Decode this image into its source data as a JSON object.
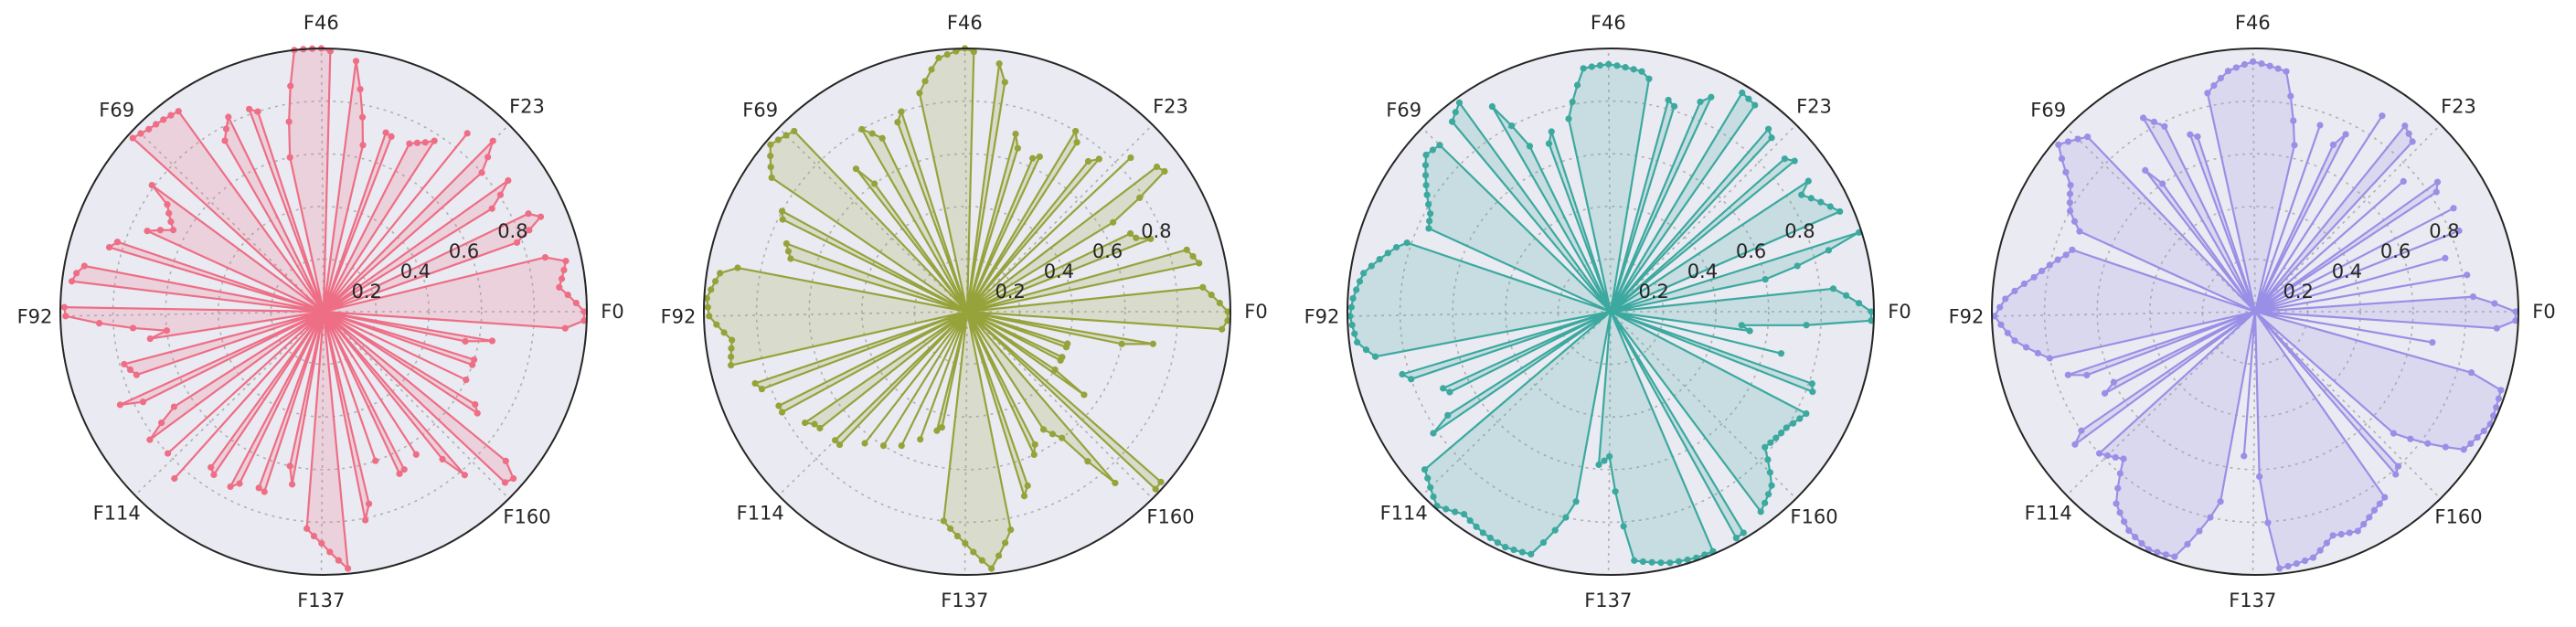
{
  "colors": {
    "background": "#EAEAF2",
    "frame": "#262626",
    "grid": "#B0B0B0"
  },
  "chart_data": [
    {
      "type": "radar",
      "color": "#EE6E85",
      "axis_labels": [
        "F0",
        "F23",
        "F46",
        "F69",
        "F92",
        "F114",
        "F137",
        "F160"
      ],
      "rticks": [
        "0.2",
        "0.4",
        "0.6",
        "0.8"
      ],
      "rlim": [
        0,
        1
      ],
      "grid": true,
      "features": 183,
      "gap_ranges": [
        [
          8,
          9
        ],
        [
          14,
          15
        ],
        [
          19,
          20
        ],
        [
          24,
          25
        ],
        [
          27,
          28
        ],
        [
          33,
          34
        ],
        [
          37,
          38
        ],
        [
          43,
          44
        ],
        [
          53,
          54
        ],
        [
          57,
          58
        ],
        [
          62,
          63
        ],
        [
          71,
          72
        ],
        [
          80,
          81
        ],
        [
          84,
          85
        ],
        [
          89,
          90
        ],
        [
          97,
          98
        ],
        [
          102,
          103
        ],
        [
          106,
          107
        ],
        [
          111,
          112
        ],
        [
          114,
          115
        ],
        [
          117,
          118
        ],
        [
          121,
          122
        ],
        [
          125,
          126
        ],
        [
          129,
          130
        ],
        [
          133,
          134
        ],
        [
          141,
          142
        ],
        [
          145,
          146
        ],
        [
          148,
          149
        ],
        [
          152,
          153
        ],
        [
          155,
          156
        ],
        [
          159,
          160
        ],
        [
          164,
          165
        ],
        [
          168,
          169
        ],
        [
          171,
          172
        ],
        [
          175,
          176
        ],
        [
          179,
          180
        ]
      ],
      "profile": [
        [
          0,
          0.99
        ],
        [
          3,
          0.9
        ],
        [
          6,
          0.94
        ],
        [
          9,
          0.72
        ],
        [
          12,
          0.9
        ],
        [
          16,
          0.75
        ],
        [
          18,
          0.86
        ],
        [
          21,
          0.8
        ],
        [
          24,
          0.97
        ],
        [
          27,
          0.82
        ],
        [
          30,
          0.75
        ],
        [
          33,
          0.7
        ],
        [
          36,
          0.72
        ],
        [
          39,
          0.65
        ],
        [
          42,
          0.96
        ],
        [
          46,
          1.0
        ],
        [
          49,
          1.0
        ],
        [
          52,
          0.6
        ],
        [
          55,
          0.8
        ],
        [
          58,
          0.86
        ],
        [
          61,
          0.75
        ],
        [
          64,
          0.94
        ],
        [
          68,
          0.96
        ],
        [
          71,
          0.99
        ],
        [
          74,
          0.72
        ],
        [
          77,
          0.65
        ],
        [
          80,
          0.78
        ],
        [
          83,
          0.85
        ],
        [
          87,
          0.95
        ],
        [
          90,
          0.99
        ],
        [
          92,
          0.98
        ],
        [
          95,
          0.6
        ],
        [
          98,
          0.8
        ],
        [
          101,
          0.75
        ],
        [
          104,
          0.85
        ],
        [
          107,
          0.6
        ],
        [
          110,
          0.82
        ],
        [
          113,
          0.8
        ],
        [
          116,
          0.85
        ],
        [
          119,
          0.73
        ],
        [
          122,
          0.78
        ],
        [
          125,
          0.7
        ],
        [
          128,
          0.72
        ],
        [
          131,
          0.6
        ],
        [
          134,
          0.8
        ],
        [
          137,
          0.88
        ],
        [
          140,
          0.98
        ],
        [
          144,
          0.75
        ],
        [
          147,
          0.6
        ],
        [
          150,
          0.68
        ],
        [
          153,
          0.66
        ],
        [
          156,
          0.62
        ],
        [
          159,
          0.92
        ],
        [
          162,
          0.96
        ],
        [
          166,
          0.7
        ],
        [
          170,
          0.6
        ],
        [
          174,
          0.6
        ],
        [
          177,
          0.55
        ],
        [
          180,
          0.85
        ],
        [
          182,
          0.99
        ]
      ]
    },
    {
      "type": "radar",
      "color": "#96A33B",
      "axis_labels": [
        "F0",
        "F23",
        "F46",
        "F69",
        "F92",
        "F114",
        "F137",
        "F160"
      ],
      "rticks": [
        "0.2",
        "0.4",
        "0.6",
        "0.8"
      ],
      "rlim": [
        0,
        1
      ],
      "grid": true,
      "features": 183,
      "gap_ranges": [
        [
          4,
          5
        ],
        [
          9,
          10
        ],
        [
          14,
          15
        ],
        [
          20,
          21
        ],
        [
          23,
          24
        ],
        [
          27,
          28
        ],
        [
          31,
          32
        ],
        [
          35,
          36
        ],
        [
          39,
          40
        ],
        [
          43,
          44
        ],
        [
          53,
          54
        ],
        [
          57,
          58
        ],
        [
          62,
          63
        ],
        [
          66,
          67
        ],
        [
          75,
          76
        ],
        [
          79,
          80
        ],
        [
          84,
          85
        ],
        [
          99,
          100
        ],
        [
          103,
          104
        ],
        [
          107,
          108
        ],
        [
          112,
          113
        ],
        [
          116,
          117
        ],
        [
          119,
          120
        ],
        [
          122,
          123
        ],
        [
          125,
          126
        ],
        [
          128,
          129
        ],
        [
          132,
          133
        ],
        [
          144,
          145
        ],
        [
          148,
          149
        ],
        [
          152,
          153
        ],
        [
          159,
          160
        ],
        [
          163,
          164
        ],
        [
          167,
          168
        ],
        [
          171,
          172
        ],
        [
          175,
          176
        ],
        [
          179,
          180
        ]
      ],
      "profile": [
        [
          0,
          0.99
        ],
        [
          3,
          0.9
        ],
        [
          6,
          0.9
        ],
        [
          9,
          0.85
        ],
        [
          12,
          0.7
        ],
        [
          16,
          0.65
        ],
        [
          18,
          0.92
        ],
        [
          21,
          0.88
        ],
        [
          24,
          0.8
        ],
        [
          27,
          0.7
        ],
        [
          30,
          0.8
        ],
        [
          33,
          0.65
        ],
        [
          36,
          0.6
        ],
        [
          39,
          0.75
        ],
        [
          42,
          0.95
        ],
        [
          46,
          1.0
        ],
        [
          49,
          0.97
        ],
        [
          52,
          0.85
        ],
        [
          55,
          0.8
        ],
        [
          58,
          0.7
        ],
        [
          61,
          0.8
        ],
        [
          64,
          0.6
        ],
        [
          68,
          0.95
        ],
        [
          71,
          0.98
        ],
        [
          74,
          0.9
        ],
        [
          77,
          0.8
        ],
        [
          80,
          0.75
        ],
        [
          83,
          0.7
        ],
        [
          87,
          0.95
        ],
        [
          90,
          0.99
        ],
        [
          92,
          0.98
        ],
        [
          95,
          0.9
        ],
        [
          98,
          0.92
        ],
        [
          101,
          0.85
        ],
        [
          104,
          0.8
        ],
        [
          107,
          0.8
        ],
        [
          110,
          0.72
        ],
        [
          113,
          0.7
        ],
        [
          116,
          0.7
        ],
        [
          119,
          0.6
        ],
        [
          122,
          0.6
        ],
        [
          125,
          0.55
        ],
        [
          128,
          0.5
        ],
        [
          131,
          0.45
        ],
        [
          134,
          0.8
        ],
        [
          137,
          0.88
        ],
        [
          140,
          0.98
        ],
        [
          144,
          0.8
        ],
        [
          147,
          0.7
        ],
        [
          150,
          0.6
        ],
        [
          153,
          0.5
        ],
        [
          156,
          0.6
        ],
        [
          159,
          0.99
        ],
        [
          162,
          0.98
        ],
        [
          166,
          0.4
        ],
        [
          170,
          0.4
        ],
        [
          174,
          0.4
        ],
        [
          177,
          0.6
        ],
        [
          180,
          0.95
        ],
        [
          182,
          0.99
        ]
      ]
    },
    {
      "type": "radar",
      "color": "#3BA99F",
      "axis_labels": [
        "F0",
        "F23",
        "F46",
        "F69",
        "F92",
        "F114",
        "F137",
        "F160"
      ],
      "rticks": [
        "0.2",
        "0.4",
        "0.6",
        "0.8"
      ],
      "rlim": [
        0,
        1
      ],
      "grid": true,
      "features": 183,
      "gap_ranges": [
        [
          4,
          5
        ],
        [
          10,
          11
        ],
        [
          18,
          19
        ],
        [
          22,
          23
        ],
        [
          26,
          27
        ],
        [
          31,
          32
        ],
        [
          35,
          36
        ],
        [
          39,
          40
        ],
        [
          53,
          54
        ],
        [
          57,
          58
        ],
        [
          62,
          63
        ],
        [
          67,
          68
        ],
        [
          80,
          81
        ],
        [
          98,
          99
        ],
        [
          102,
          103
        ],
        [
          106,
          107
        ],
        [
          110,
          111
        ],
        [
          133,
          134
        ],
        [
          150,
          151
        ],
        [
          154,
          155
        ],
        [
          170,
          171
        ],
        [
          174,
          175
        ],
        [
          177,
          178
        ]
      ],
      "profile": [
        [
          0,
          0.99
        ],
        [
          3,
          0.85
        ],
        [
          6,
          0.6
        ],
        [
          9,
          0.99
        ],
        [
          12,
          0.95
        ],
        [
          16,
          0.85
        ],
        [
          18,
          0.95
        ],
        [
          21,
          0.88
        ],
        [
          24,
          0.9
        ],
        [
          27,
          0.95
        ],
        [
          30,
          0.97
        ],
        [
          33,
          0.9
        ],
        [
          36,
          0.8
        ],
        [
          39,
          0.85
        ],
        [
          42,
          0.92
        ],
        [
          46,
          0.94
        ],
        [
          49,
          0.93
        ],
        [
          52,
          0.75
        ],
        [
          55,
          0.72
        ],
        [
          58,
          0.6
        ],
        [
          61,
          0.9
        ],
        [
          64,
          0.98
        ],
        [
          68,
          0.9
        ],
        [
          71,
          0.92
        ],
        [
          74,
          0.85
        ],
        [
          77,
          0.78
        ],
        [
          80,
          0.75
        ],
        [
          83,
          0.85
        ],
        [
          87,
          0.95
        ],
        [
          90,
          0.98
        ],
        [
          92,
          0.99
        ],
        [
          95,
          0.97
        ],
        [
          98,
          0.88
        ],
        [
          101,
          0.8
        ],
        [
          104,
          0.7
        ],
        [
          107,
          0.65
        ],
        [
          110,
          0.9
        ],
        [
          113,
          0.94
        ],
        [
          116,
          0.99
        ],
        [
          119,
          0.95
        ],
        [
          122,
          0.97
        ],
        [
          125,
          0.98
        ],
        [
          128,
          0.97
        ],
        [
          131,
          0.8
        ],
        [
          134,
          0.6
        ],
        [
          137,
          0.55
        ],
        [
          140,
          0.95
        ],
        [
          144,
          0.98
        ],
        [
          147,
          0.99
        ],
        [
          150,
          0.99
        ],
        [
          153,
          0.98
        ],
        [
          156,
          0.95
        ],
        [
          159,
          0.9
        ],
        [
          162,
          0.78
        ],
        [
          166,
          0.8
        ],
        [
          170,
          0.85
        ],
        [
          174,
          0.8
        ],
        [
          177,
          0.6
        ],
        [
          180,
          0.5
        ],
        [
          182,
          0.99
        ]
      ]
    },
    {
      "type": "radar",
      "color": "#9A8FE6",
      "axis_labels": [
        "F0",
        "F23",
        "F46",
        "F69",
        "F92",
        "F114",
        "F137",
        "F160"
      ],
      "rticks": [
        "0.2",
        "0.4",
        "0.6",
        "0.8"
      ],
      "rlim": [
        0,
        1
      ],
      "grid": true,
      "features": 183,
      "gap_ranges": [
        [
          3,
          4
        ],
        [
          6,
          7
        ],
        [
          9,
          10
        ],
        [
          12,
          13
        ],
        [
          15,
          16
        ],
        [
          19,
          20
        ],
        [
          22,
          23
        ],
        [
          27,
          28
        ],
        [
          30,
          31
        ],
        [
          34,
          35
        ],
        [
          37,
          38
        ],
        [
          53,
          54
        ],
        [
          57,
          58
        ],
        [
          62,
          63
        ],
        [
          66,
          67
        ],
        [
          80,
          81
        ],
        [
          99,
          100
        ],
        [
          103,
          104
        ],
        [
          107,
          108
        ],
        [
          111,
          112
        ],
        [
          133,
          134
        ],
        [
          136,
          137
        ],
        [
          156,
          157
        ],
        [
          160,
          161
        ],
        [
          176,
          177
        ],
        [
          179,
          180
        ]
      ],
      "profile": [
        [
          0,
          0.99
        ],
        [
          3,
          0.75
        ],
        [
          6,
          0.85
        ],
        [
          9,
          0.7
        ],
        [
          12,
          0.9
        ],
        [
          16,
          0.8
        ],
        [
          18,
          0.85
        ],
        [
          21,
          0.75
        ],
        [
          24,
          0.88
        ],
        [
          27,
          0.92
        ],
        [
          30,
          0.87
        ],
        [
          33,
          0.7
        ],
        [
          36,
          0.75
        ],
        [
          39,
          0.65
        ],
        [
          42,
          0.92
        ],
        [
          46,
          0.95
        ],
        [
          49,
          0.92
        ],
        [
          52,
          0.85
        ],
        [
          55,
          0.7
        ],
        [
          58,
          0.75
        ],
        [
          61,
          0.85
        ],
        [
          64,
          0.6
        ],
        [
          68,
          0.92
        ],
        [
          71,
          0.98
        ],
        [
          74,
          0.85
        ],
        [
          77,
          0.8
        ],
        [
          80,
          0.7
        ],
        [
          83,
          0.75
        ],
        [
          87,
          0.85
        ],
        [
          90,
          0.95
        ],
        [
          92,
          0.99
        ],
        [
          95,
          0.92
        ],
        [
          98,
          0.8
        ],
        [
          101,
          0.75
        ],
        [
          104,
          0.55
        ],
        [
          107,
          0.7
        ],
        [
          110,
          0.85
        ],
        [
          113,
          0.8
        ],
        [
          116,
          0.75
        ],
        [
          119,
          0.9
        ],
        [
          122,
          0.96
        ],
        [
          125,
          0.99
        ],
        [
          128,
          0.98
        ],
        [
          131,
          0.8
        ],
        [
          134,
          0.6
        ],
        [
          137,
          0.45
        ],
        [
          140,
          0.98
        ],
        [
          144,
          0.96
        ],
        [
          147,
          0.9
        ],
        [
          150,
          0.92
        ],
        [
          153,
          0.88
        ],
        [
          156,
          0.85
        ],
        [
          159,
          0.8
        ],
        [
          162,
          0.7
        ],
        [
          166,
          0.95
        ],
        [
          170,
          0.99
        ],
        [
          174,
          0.98
        ],
        [
          177,
          0.6
        ],
        [
          180,
          0.85
        ],
        [
          182,
          0.99
        ]
      ]
    }
  ]
}
